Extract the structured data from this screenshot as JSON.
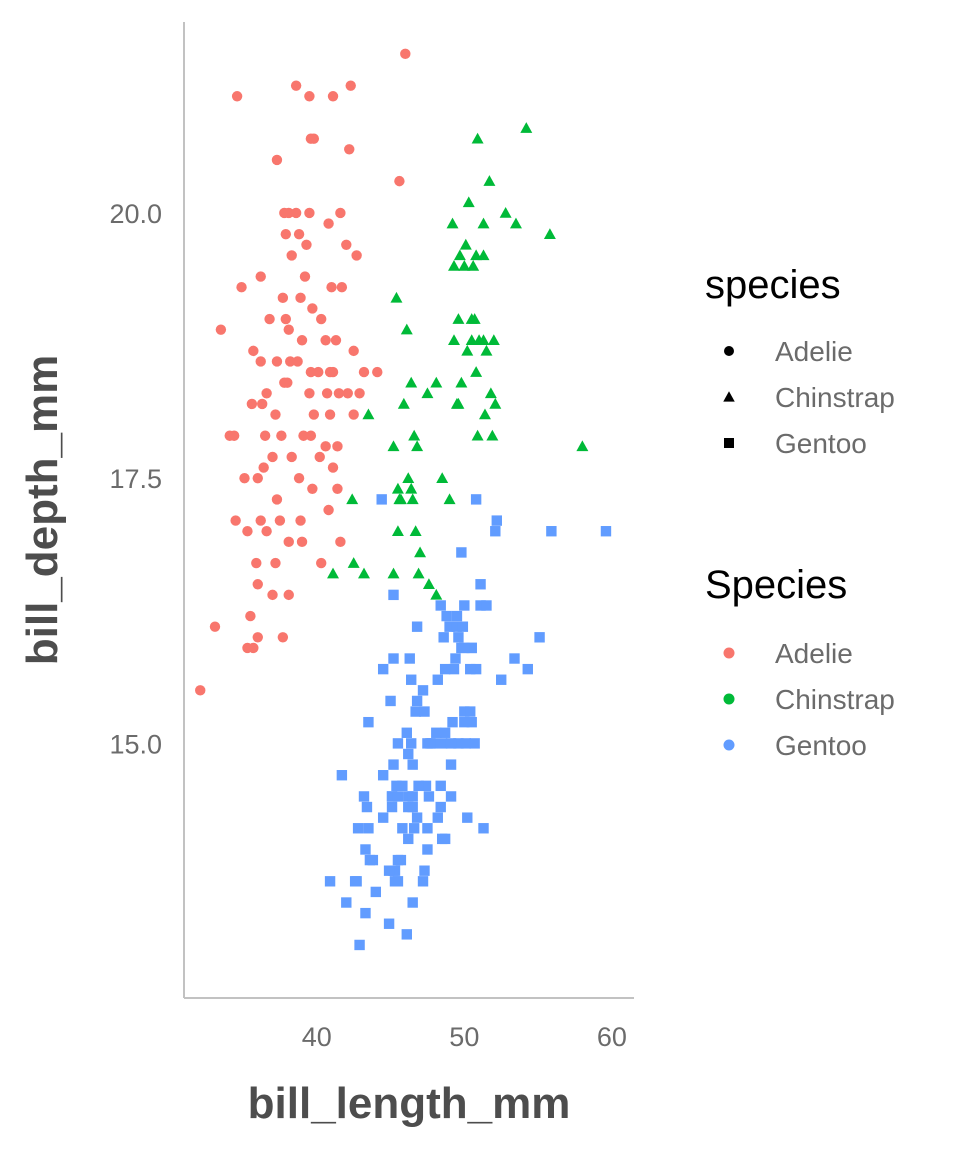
{
  "chart_data": {
    "type": "scatter",
    "title": "",
    "xlabel": "bill_length_mm",
    "ylabel": "bill_depth_mm",
    "xlim": [
      31,
      61.5
    ],
    "ylim": [
      12.6,
      21.8
    ],
    "x_ticks": [
      40,
      50,
      60
    ],
    "y_ticks": [
      15.0,
      17.5,
      20.0
    ],
    "x_tick_labels": [
      "40",
      "50",
      "60"
    ],
    "y_tick_labels": [
      "15.0",
      "17.5",
      "20.0"
    ],
    "grid": false,
    "legend_position": "right",
    "shape_legend": {
      "title": "species",
      "items": [
        {
          "label": "Adelie",
          "shape": "circle"
        },
        {
          "label": "Chinstrap",
          "shape": "triangle"
        },
        {
          "label": "Gentoo",
          "shape": "square"
        }
      ]
    },
    "color_legend": {
      "title": "Species",
      "items": [
        {
          "label": "Adelie",
          "color": "#F8766D"
        },
        {
          "label": "Chinstrap",
          "color": "#00BA38"
        },
        {
          "label": "Gentoo",
          "color": "#619CFF"
        }
      ]
    },
    "series": [
      {
        "name": "Adelie",
        "shape": "circle",
        "color": "#F8766D",
        "points": [
          [
            46.0,
            21.5
          ],
          [
            34.6,
            21.1
          ],
          [
            38.6,
            21.2
          ],
          [
            39.5,
            21.1
          ],
          [
            42.3,
            21.2
          ],
          [
            41.1,
            21.1
          ],
          [
            39.6,
            20.7
          ],
          [
            39.8,
            20.7
          ],
          [
            42.2,
            20.6
          ],
          [
            37.3,
            20.5
          ],
          [
            45.6,
            20.3
          ],
          [
            41.6,
            20.0
          ],
          [
            40.8,
            19.9
          ],
          [
            42.0,
            19.7
          ],
          [
            37.8,
            20.0
          ],
          [
            38.1,
            20.0
          ],
          [
            38.6,
            20.0
          ],
          [
            39.5,
            20.0
          ],
          [
            37.9,
            19.8
          ],
          [
            39.3,
            19.7
          ],
          [
            38.8,
            19.8
          ],
          [
            38.3,
            19.6
          ],
          [
            42.7,
            19.6
          ],
          [
            39.2,
            19.4
          ],
          [
            36.2,
            19.4
          ],
          [
            41.0,
            19.3
          ],
          [
            41.7,
            19.3
          ],
          [
            34.9,
            19.3
          ],
          [
            37.7,
            19.2
          ],
          [
            38.9,
            19.2
          ],
          [
            39.7,
            19.1
          ],
          [
            40.3,
            19.0
          ],
          [
            36.8,
            19.0
          ],
          [
            37.9,
            19.0
          ],
          [
            33.5,
            18.9
          ],
          [
            38.1,
            18.9
          ],
          [
            39.0,
            18.8
          ],
          [
            40.6,
            18.8
          ],
          [
            41.3,
            18.8
          ],
          [
            42.5,
            18.7
          ],
          [
            35.7,
            18.7
          ],
          [
            36.2,
            18.6
          ],
          [
            37.3,
            18.6
          ],
          [
            38.2,
            18.6
          ],
          [
            38.7,
            18.6
          ],
          [
            39.6,
            18.5
          ],
          [
            40.1,
            18.5
          ],
          [
            41.1,
            18.5
          ],
          [
            40.9,
            18.5
          ],
          [
            43.2,
            18.5
          ],
          [
            44.1,
            18.5
          ],
          [
            38.0,
            18.4
          ],
          [
            37.8,
            18.4
          ],
          [
            36.6,
            18.3
          ],
          [
            39.5,
            18.3
          ],
          [
            40.7,
            18.3
          ],
          [
            42.1,
            18.3
          ],
          [
            41.5,
            18.3
          ],
          [
            42.9,
            18.3
          ],
          [
            36.3,
            18.2
          ],
          [
            35.6,
            18.2
          ],
          [
            37.2,
            18.1
          ],
          [
            39.8,
            18.1
          ],
          [
            40.9,
            18.1
          ],
          [
            42.5,
            18.1
          ],
          [
            34.1,
            17.9
          ],
          [
            34.4,
            17.9
          ],
          [
            36.5,
            17.9
          ],
          [
            37.6,
            17.9
          ],
          [
            39.1,
            17.9
          ],
          [
            39.6,
            17.9
          ],
          [
            41.4,
            17.8
          ],
          [
            40.6,
            17.8
          ],
          [
            37.0,
            17.7
          ],
          [
            38.3,
            17.7
          ],
          [
            40.2,
            17.7
          ],
          [
            41.1,
            17.6
          ],
          [
            36.4,
            17.6
          ],
          [
            35.1,
            17.5
          ],
          [
            36.0,
            17.5
          ],
          [
            38.8,
            17.5
          ],
          [
            39.7,
            17.4
          ],
          [
            41.4,
            17.4
          ],
          [
            37.3,
            17.3
          ],
          [
            40.8,
            17.2
          ],
          [
            38.9,
            17.1
          ],
          [
            36.2,
            17.1
          ],
          [
            37.5,
            17.1
          ],
          [
            34.5,
            17.1
          ],
          [
            35.3,
            17.0
          ],
          [
            36.6,
            17.0
          ],
          [
            38.1,
            16.9
          ],
          [
            39.0,
            16.9
          ],
          [
            41.6,
            16.9
          ],
          [
            35.9,
            16.7
          ],
          [
            37.2,
            16.7
          ],
          [
            40.3,
            16.7
          ],
          [
            36.0,
            16.5
          ],
          [
            37.0,
            16.4
          ],
          [
            38.1,
            16.4
          ],
          [
            35.5,
            16.2
          ],
          [
            33.1,
            16.1
          ],
          [
            36.0,
            16.0
          ],
          [
            35.7,
            15.9
          ],
          [
            37.7,
            16.0
          ],
          [
            35.3,
            15.9
          ],
          [
            32.1,
            15.5
          ]
        ]
      },
      {
        "name": "Chinstrap",
        "shape": "triangle",
        "color": "#00BA38",
        "points": [
          [
            54.2,
            20.8
          ],
          [
            50.9,
            20.7
          ],
          [
            51.7,
            20.3
          ],
          [
            50.6,
            19.5
          ],
          [
            52.8,
            20.0
          ],
          [
            49.2,
            19.9
          ],
          [
            50.3,
            20.1
          ],
          [
            51.3,
            19.9
          ],
          [
            53.5,
            19.9
          ],
          [
            55.8,
            19.8
          ],
          [
            50.8,
            19.6
          ],
          [
            49.7,
            19.6
          ],
          [
            50.1,
            19.7
          ],
          [
            50.0,
            19.5
          ],
          [
            51.3,
            19.6
          ],
          [
            49.3,
            19.5
          ],
          [
            45.4,
            19.2
          ],
          [
            51.5,
            18.7
          ],
          [
            50.5,
            19.0
          ],
          [
            51.0,
            18.8
          ],
          [
            50.7,
            19.0
          ],
          [
            52.0,
            18.8
          ],
          [
            49.6,
            19.0
          ],
          [
            46.1,
            18.9
          ],
          [
            51.3,
            18.8
          ],
          [
            50.5,
            18.8
          ],
          [
            50.8,
            18.5
          ],
          [
            49.8,
            18.4
          ],
          [
            47.5,
            18.3
          ],
          [
            45.9,
            18.2
          ],
          [
            46.4,
            18.4
          ],
          [
            48.1,
            18.4
          ],
          [
            49.5,
            18.2
          ],
          [
            49.6,
            18.2
          ],
          [
            51.4,
            18.1
          ],
          [
            42.4,
            17.3
          ],
          [
            45.2,
            17.8
          ],
          [
            46.6,
            17.9
          ],
          [
            45.5,
            17.4
          ],
          [
            48.5,
            17.5
          ],
          [
            49.0,
            17.3
          ],
          [
            50.9,
            17.9
          ],
          [
            51.9,
            17.9
          ],
          [
            58.0,
            17.8
          ],
          [
            50.2,
            18.7
          ],
          [
            49.3,
            18.8
          ],
          [
            52.1,
            18.2
          ],
          [
            51.8,
            18.3
          ],
          [
            46.8,
            17.8
          ],
          [
            43.5,
            18.1
          ],
          [
            46.2,
            17.5
          ],
          [
            46.7,
            17.0
          ],
          [
            45.6,
            17.3
          ],
          [
            45.5,
            17.0
          ],
          [
            47.0,
            16.8
          ],
          [
            46.9,
            16.6
          ],
          [
            45.2,
            16.6
          ],
          [
            42.5,
            16.7
          ],
          [
            41.1,
            16.6
          ],
          [
            43.2,
            16.6
          ],
          [
            46.5,
            17.3
          ],
          [
            45.7,
            17.3
          ],
          [
            47.6,
            16.5
          ],
          [
            46.4,
            17.4
          ],
          [
            48.1,
            16.4
          ]
        ]
      },
      {
        "name": "Gentoo",
        "shape": "square",
        "color": "#619CFF",
        "points": [
          [
            46.1,
            13.2
          ],
          [
            50.0,
            16.3
          ],
          [
            48.7,
            14.1
          ],
          [
            50.0,
            15.2
          ],
          [
            47.6,
            14.5
          ],
          [
            46.5,
            13.5
          ],
          [
            45.4,
            14.6
          ],
          [
            46.7,
            15.3
          ],
          [
            43.3,
            13.4
          ],
          [
            46.8,
            15.4
          ],
          [
            40.9,
            13.7
          ],
          [
            49.0,
            16.1
          ],
          [
            45.5,
            13.7
          ],
          [
            48.4,
            14.6
          ],
          [
            45.8,
            14.6
          ],
          [
            49.3,
            15.7
          ],
          [
            42.0,
            13.5
          ],
          [
            49.2,
            15.2
          ],
          [
            46.2,
            14.5
          ],
          [
            48.7,
            15.1
          ],
          [
            50.2,
            14.3
          ],
          [
            45.1,
            14.5
          ],
          [
            46.5,
            14.5
          ],
          [
            46.3,
            15.8
          ],
          [
            42.9,
            13.1
          ],
          [
            46.1,
            15.1
          ],
          [
            44.5,
            14.3
          ],
          [
            47.8,
            15.0
          ],
          [
            48.2,
            14.3
          ],
          [
            50.0,
            15.3
          ],
          [
            47.3,
            15.3
          ],
          [
            42.8,
            14.2
          ],
          [
            45.1,
            14.5
          ],
          [
            59.6,
            17.0
          ],
          [
            49.1,
            14.8
          ],
          [
            48.4,
            16.3
          ],
          [
            42.6,
            13.7
          ],
          [
            44.4,
            17.3
          ],
          [
            44.0,
            13.6
          ],
          [
            48.7,
            15.7
          ],
          [
            42.7,
            13.7
          ],
          [
            49.6,
            16.0
          ],
          [
            45.3,
            13.7
          ],
          [
            49.6,
            15.0
          ],
          [
            50.5,
            15.9
          ],
          [
            43.6,
            13.9
          ],
          [
            45.5,
            13.9
          ],
          [
            50.5,
            15.9
          ],
          [
            44.9,
            13.3
          ],
          [
            45.2,
            15.8
          ],
          [
            46.6,
            14.2
          ],
          [
            48.5,
            14.1
          ],
          [
            45.1,
            14.4
          ],
          [
            50.1,
            15.0
          ],
          [
            46.5,
            14.4
          ],
          [
            45.0,
            15.4
          ],
          [
            43.8,
            13.9
          ],
          [
            45.5,
            15.0
          ],
          [
            43.2,
            14.5
          ],
          [
            50.4,
            15.3
          ],
          [
            45.3,
            13.8
          ],
          [
            46.2,
            14.9
          ],
          [
            45.7,
            13.9
          ],
          [
            54.3,
            15.7
          ],
          [
            45.8,
            14.2
          ],
          [
            49.8,
            16.8
          ],
          [
            46.2,
            14.4
          ],
          [
            49.5,
            16.2
          ],
          [
            43.5,
            14.2
          ],
          [
            50.7,
            15.0
          ],
          [
            47.7,
            15.0
          ],
          [
            46.4,
            15.6
          ],
          [
            48.2,
            15.6
          ],
          [
            46.5,
            14.8
          ],
          [
            46.4,
            15.0
          ],
          [
            48.6,
            16.0
          ],
          [
            47.5,
            14.2
          ],
          [
            51.1,
            16.3
          ],
          [
            45.2,
            13.8
          ],
          [
            45.2,
            16.4
          ],
          [
            49.1,
            14.5
          ],
          [
            52.5,
            15.6
          ],
          [
            47.4,
            14.6
          ],
          [
            50.0,
            15.9
          ],
          [
            44.9,
            13.8
          ],
          [
            50.8,
            17.3
          ],
          [
            43.4,
            14.4
          ],
          [
            51.3,
            14.2
          ],
          [
            47.5,
            14.0
          ],
          [
            52.1,
            17.0
          ],
          [
            47.5,
            15.0
          ],
          [
            52.2,
            17.1
          ],
          [
            45.5,
            14.5
          ],
          [
            49.5,
            16.1
          ],
          [
            44.5,
            14.7
          ],
          [
            50.8,
            15.7
          ],
          [
            49.4,
            15.8
          ],
          [
            46.9,
            14.6
          ],
          [
            48.4,
            14.4
          ],
          [
            51.1,
            16.5
          ],
          [
            48.5,
            15.0
          ],
          [
            55.9,
            17.0
          ],
          [
            47.2,
            15.5
          ],
          [
            49.1,
            15.0
          ],
          [
            47.3,
            13.8
          ],
          [
            46.8,
            16.1
          ],
          [
            41.7,
            14.7
          ],
          [
            53.4,
            15.8
          ],
          [
            43.3,
            14.0
          ],
          [
            48.1,
            15.1
          ],
          [
            50.5,
            15.2
          ],
          [
            49.8,
            15.9
          ],
          [
            43.5,
            15.2
          ],
          [
            51.5,
            16.3
          ],
          [
            46.2,
            14.1
          ],
          [
            55.1,
            16.0
          ],
          [
            44.5,
            15.7
          ],
          [
            48.8,
            16.2
          ],
          [
            47.2,
            13.7
          ],
          [
            46.8,
            14.3
          ],
          [
            50.4,
            15.7
          ],
          [
            45.2,
            14.8
          ],
          [
            49.9,
            16.1
          ]
        ]
      }
    ]
  }
}
